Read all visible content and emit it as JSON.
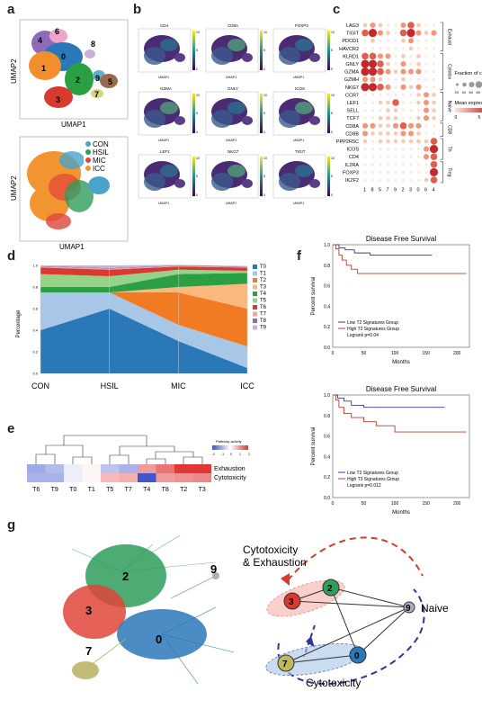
{
  "panels": {
    "a": "a",
    "b": "b",
    "c": "c",
    "d": "d",
    "e": "e",
    "f": "f",
    "g": "g"
  },
  "panel_a": {
    "umap_top": {
      "xlabel": "UMAP1",
      "ylabel": "UMAP2",
      "clusters": [
        "4",
        "6",
        "0",
        "8",
        "1",
        "2",
        "9",
        "5",
        "3",
        "7"
      ]
    },
    "umap_bottom": {
      "xlabel": "UMAP1",
      "ylabel": "UMAP2",
      "legend": [
        {
          "label": "CON",
          "color": "#4aa3c8"
        },
        {
          "label": "HSIL",
          "color": "#2e9e5b"
        },
        {
          "label": "MIC",
          "color": "#e0443a"
        },
        {
          "label": "ICC",
          "color": "#f29430"
        }
      ]
    }
  },
  "panel_b": {
    "titles": [
      "CD4",
      "CD8A",
      "FOXP3",
      "GZMA",
      "GNLY",
      "ICOS",
      "LEF1",
      "NKG7",
      "TIGIT"
    ],
    "axis_x": "UMAP1",
    "axis_y": "UMAP2",
    "scale_ticks": [
      "10",
      "5",
      "0"
    ]
  },
  "panel_c": {
    "genes": [
      "LAG3",
      "TIGIT",
      "PDCD1",
      "HAVCR2",
      "KLRD1",
      "GNLY",
      "GZMA",
      "GZMH",
      "NKG7",
      "CCR7",
      "LEF1",
      "SELL",
      "TCF7",
      "CD8A",
      "CD8B",
      "PPP2R5C",
      "ICOS",
      "CD4",
      "IL2RA",
      "FOXP3",
      "IKZF2"
    ],
    "clusters": [
      "1",
      "8",
      "5",
      "7",
      "9",
      "2",
      "3",
      "0",
      "6",
      "4"
    ],
    "groups": [
      {
        "label": "Exhaust",
        "from": 0,
        "to": 3
      },
      {
        "label": "Cytotox",
        "from": 4,
        "to": 8
      },
      {
        "label": "Naive",
        "from": 9,
        "to": 12
      },
      {
        "label": "CD8",
        "from": 13,
        "to": 14
      },
      {
        "label": "Th",
        "from": 15,
        "to": 17
      },
      {
        "label": "Treg",
        "from": 18,
        "to": 20
      }
    ],
    "size_legend_title": "Fraction of cells in group (%)",
    "size_ticks": [
      "20",
      "40",
      "60",
      "80",
      "100"
    ],
    "color_legend_title": "Mean expression in group",
    "color_ticks": [
      "0",
      "5"
    ]
  },
  "panel_d": {
    "chart_data": {
      "type": "area",
      "categories": [
        "CON",
        "HSIL",
        "MIC",
        "ICC"
      ],
      "ylabel": "Percentage",
      "yticks": [
        "0.0",
        "0.2",
        "0.4",
        "0.6",
        "0.8",
        "1.0"
      ],
      "ylim": [
        0,
        1
      ],
      "series": [
        {
          "name": "T0",
          "color": "#2a78b8",
          "values": [
            0.4,
            0.6,
            0.3,
            0.05
          ]
        },
        {
          "name": "T1",
          "color": "#a8c6e6",
          "values": [
            0.35,
            0.15,
            0.15,
            0.2
          ]
        },
        {
          "name": "T2",
          "color": "#f07b22",
          "values": [
            0.0,
            0.0,
            0.3,
            0.35
          ]
        },
        {
          "name": "T3",
          "color": "#f9b97e",
          "values": [
            0.0,
            0.0,
            0.05,
            0.23
          ]
        },
        {
          "name": "T4",
          "color": "#2aa043",
          "values": [
            0.05,
            0.05,
            0.12,
            0.1
          ]
        },
        {
          "name": "T5",
          "color": "#96d38a",
          "values": [
            0.12,
            0.1,
            0.04,
            0.02
          ]
        },
        {
          "name": "T6",
          "color": "#d93a2f",
          "values": [
            0.06,
            0.06,
            0.03,
            0.03
          ]
        },
        {
          "name": "T7",
          "color": "#f4a29b",
          "values": [
            0.01,
            0.01,
            0.005,
            0.005
          ]
        },
        {
          "name": "T8",
          "color": "#8e6bb8",
          "values": [
            0.005,
            0.005,
            0.005,
            0.005
          ]
        },
        {
          "name": "T9",
          "color": "#c5b1d9",
          "values": [
            0.005,
            0.025,
            0.005,
            0.005
          ]
        }
      ]
    }
  },
  "panel_e": {
    "legend_title": "Pathway activity",
    "legend_ticks": [
      "-2",
      "-1",
      "0",
      "1",
      "2"
    ],
    "rows": [
      "Exhaustion",
      "Cytotoxicity"
    ],
    "cols": [
      "T6",
      "T9",
      "T0",
      "T1",
      "T5",
      "T7",
      "T4",
      "T8",
      "T2",
      "T3"
    ],
    "values": [
      [
        -1.0,
        -0.8,
        -0.2,
        0.1,
        -0.7,
        -0.9,
        1.0,
        1.4,
        2.0,
        2.2
      ],
      [
        -0.9,
        -0.9,
        -0.2,
        0.1,
        0.7,
        0.8,
        -2.2,
        1.0,
        1.1,
        1.2
      ]
    ]
  },
  "panel_f": {
    "top": {
      "title": "Disease Free Survival",
      "ylabel": "Percent survival",
      "xlabel": "Months",
      "yticks": [
        "0.0",
        "0.2",
        "0.4",
        "0.6",
        "0.8",
        "1.0"
      ],
      "xticks": [
        "0",
        "50",
        "100",
        "150",
        "200"
      ],
      "legend": [
        "Low T2 Signatures Group",
        "High T2 Signatures Group",
        "Logrank p=0.04"
      ]
    },
    "bottom": {
      "title": "Disease Free Survival",
      "ylabel": "Percent survival",
      "xlabel": "Months",
      "yticks": [
        "0.0",
        "0.2",
        "0.4",
        "0.6",
        "0.8",
        "1.0"
      ],
      "xticks": [
        "0",
        "50",
        "100",
        "150",
        "200"
      ],
      "legend": [
        "Low T3 Signatures Group",
        "High T3 Signatures Group",
        "Logrank p=0.012"
      ]
    }
  },
  "panel_g": {
    "left_clusters": [
      "2",
      "3",
      "9",
      "7",
      "0"
    ],
    "right_nodes": {
      "n3": "3",
      "n2": "2",
      "n9": "9",
      "n7": "7",
      "n0": "0"
    },
    "labels": {
      "cytoexh": "Cytotoxicity\n& Exhaustion",
      "cytoexh_1": "Cytotoxicity",
      "cytoexh_2": "& Exhaustion",
      "naive": "Naive",
      "cyto": "Cytotoxicity"
    }
  }
}
